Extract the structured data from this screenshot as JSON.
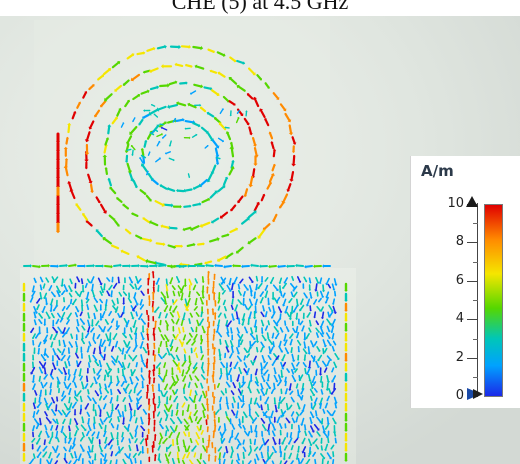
{
  "window": {
    "title": "CHE (5) at 4.5 GHz"
  },
  "legend": {
    "unit": "A/m",
    "ticks": [
      {
        "label": "10",
        "value": 10
      },
      {
        "label": "8",
        "value": 8
      },
      {
        "label": "6",
        "value": 6
      },
      {
        "label": "4",
        "value": 4
      },
      {
        "label": "2",
        "value": 2
      },
      {
        "label": "0",
        "value": 0
      }
    ],
    "colorscale": [
      "#1b29e8",
      "#00a2ff",
      "#00c6b8",
      "#55d700",
      "#f5e600",
      "#ff8a00",
      "#e00000"
    ]
  },
  "scene": {
    "background_color": "#dde3de",
    "glow_color": "#edf2ea",
    "substrate_color": "#e6ece6"
  }
}
